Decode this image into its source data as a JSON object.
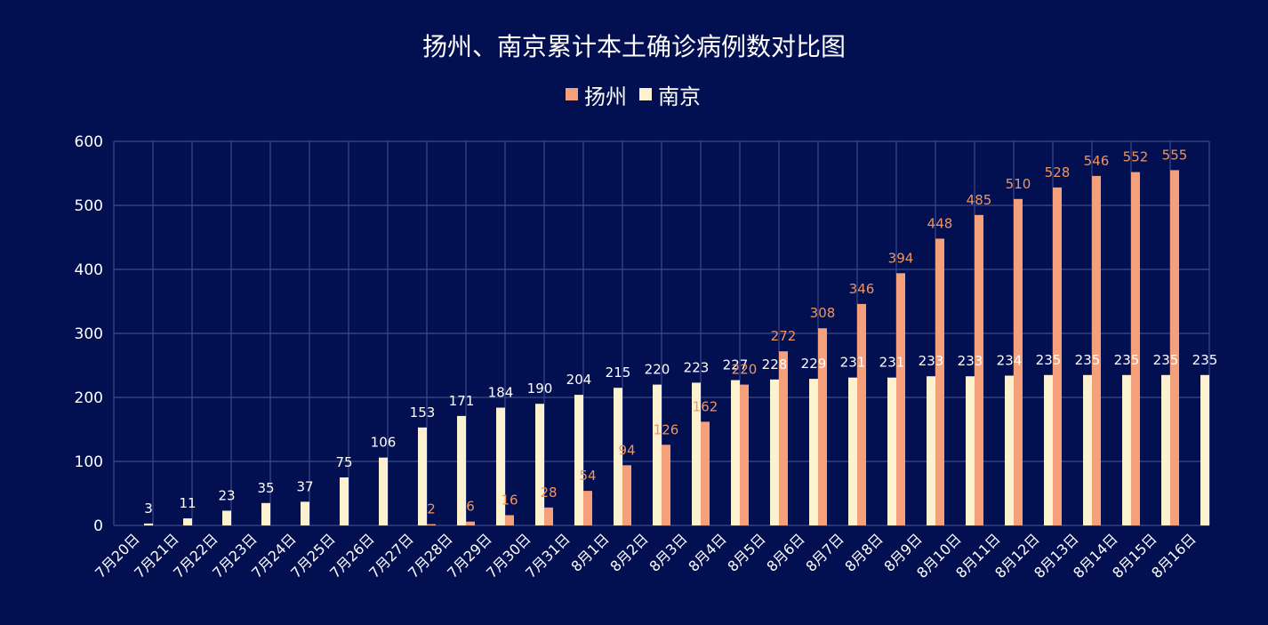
{
  "chart_data": {
    "type": "bar",
    "title": "扬州、南京累计本土确诊病例数对比图",
    "xlabel": "",
    "ylabel": "",
    "ylim": [
      0,
      600
    ],
    "yticks": [
      0,
      100,
      200,
      300,
      400,
      500,
      600
    ],
    "grid": true,
    "legend_position": "top-center",
    "categories": [
      "7月20日",
      "7月21日",
      "7月22日",
      "7月23日",
      "7月24日",
      "7月25日",
      "7月26日",
      "7月27日",
      "7月28日",
      "7月29日",
      "7月30日",
      "7月31日",
      "8月1日",
      "8月2日",
      "8月3日",
      "8月4日",
      "8月5日",
      "8月6日",
      "8月7日",
      "8月8日",
      "8月9日",
      "8月10日",
      "8月11日",
      "8月12日",
      "8月13日",
      "8月14日",
      "8月15日",
      "8月16日"
    ],
    "series": [
      {
        "name": "扬州",
        "color": "#f4a07a",
        "label_color": "#f0955e",
        "values": [
          null,
          null,
          null,
          null,
          null,
          null,
          null,
          null,
          2,
          6,
          16,
          28,
          54,
          94,
          126,
          162,
          220,
          272,
          308,
          346,
          394,
          448,
          485,
          510,
          528,
          546,
          552,
          555
        ]
      },
      {
        "name": "南京",
        "color": "#fdf2cf",
        "label_color": "#ffffff",
        "values": [
          3,
          11,
          23,
          35,
          37,
          75,
          106,
          153,
          171,
          184,
          190,
          204,
          215,
          220,
          223,
          227,
          228,
          229,
          231,
          231,
          233,
          233,
          234,
          235,
          235,
          235,
          235,
          235
        ]
      }
    ]
  },
  "colors": {
    "background": "#020f50",
    "grid": "#3c4a8a"
  }
}
